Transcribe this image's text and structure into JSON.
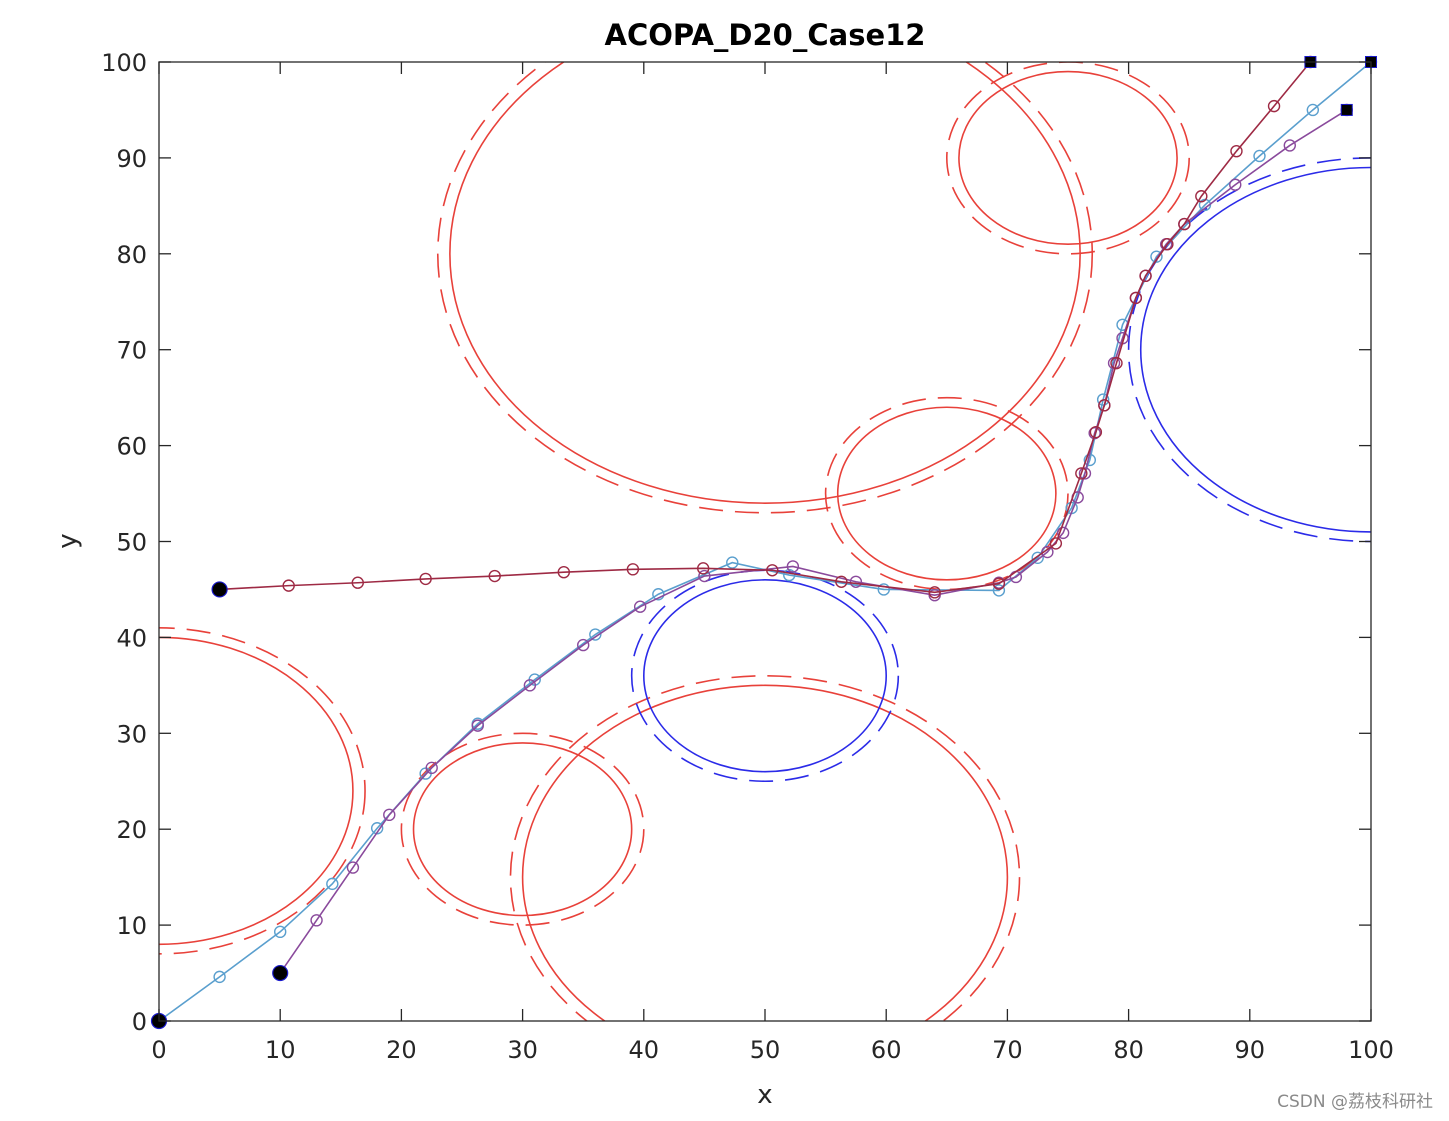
{
  "chart_data": {
    "type": "scatter",
    "title": "ACOPA_D20_Case12",
    "xlabel": "x",
    "ylabel": "y",
    "xlim": [
      0,
      100
    ],
    "ylim": [
      0,
      100
    ],
    "xticks": [
      0,
      10,
      20,
      30,
      40,
      50,
      60,
      70,
      80,
      90,
      100
    ],
    "yticks": [
      0,
      10,
      20,
      30,
      40,
      50,
      60,
      70,
      80,
      90,
      100
    ],
    "grid": false,
    "obstacles": [
      {
        "cx": 50,
        "cy": 80,
        "rx": 26,
        "ry": 26,
        "color": "#e8413a"
      },
      {
        "cx": 75,
        "cy": 90,
        "rx": 9,
        "ry": 9,
        "color": "#e8413a"
      },
      {
        "cx": 65,
        "cy": 55,
        "rx": 9,
        "ry": 9,
        "color": "#e8413a"
      },
      {
        "cx": 0,
        "cy": 24,
        "rx": 16,
        "ry": 16,
        "color": "#e8413a"
      },
      {
        "cx": 30,
        "cy": 20,
        "rx": 9,
        "ry": 9,
        "color": "#e8413a"
      },
      {
        "cx": 50,
        "cy": 15,
        "rx": 20,
        "ry": 20,
        "color": "#e8413a"
      },
      {
        "cx": 50,
        "cy": 36,
        "rx": 10,
        "ry": 10,
        "color": "#2b2be8"
      },
      {
        "cx": 100,
        "cy": 70,
        "rx": 19,
        "ry": 19,
        "color": "#2b2be8"
      }
    ],
    "series": [
      {
        "color": "#5a9fce",
        "x": [
          0,
          5,
          10,
          14.3,
          18,
          22,
          26.3,
          31,
          36,
          41.2,
          47.3,
          52,
          59.8,
          69.3,
          72.5,
          75.3,
          76.8,
          77.9,
          79.5,
          82.3,
          86.3,
          90.8,
          95.2,
          100
        ],
        "y": [
          0,
          4.6,
          9.3,
          14.3,
          20.1,
          25.8,
          31,
          35.6,
          40.3,
          44.5,
          47.8,
          46.5,
          45,
          44.9,
          48.3,
          53.5,
          58.5,
          64.8,
          72.6,
          79.7,
          85.1,
          90.2,
          95,
          100
        ]
      },
      {
        "color": "#8a4a9c",
        "x": [
          10,
          13,
          16,
          19,
          22.5,
          26.3,
          30.6,
          35,
          39.7,
          45,
          52.3,
          57.5,
          64,
          69.3,
          70.7,
          73.3,
          74.6,
          75.8,
          76.4,
          77.2,
          78,
          78.8,
          79.5,
          80.6,
          81.4,
          83.1,
          84.6,
          88.8,
          93.3,
          98
        ],
        "y": [
          5,
          10.5,
          16,
          21.5,
          26.4,
          30.8,
          35,
          39.2,
          43.2,
          46.4,
          47.4,
          45.8,
          44.4,
          45.7,
          46.3,
          48.9,
          50.9,
          54.6,
          57.1,
          61.3,
          64.2,
          68.6,
          71.2,
          75.4,
          77.7,
          81,
          83.1,
          87.2,
          91.3,
          95
        ]
      },
      {
        "color": "#9e2a44",
        "x": [
          5,
          10.7,
          16.4,
          22,
          27.7,
          33.4,
          39.1,
          44.9,
          50.6,
          56.3,
          64,
          69.3,
          74,
          76.1,
          77.3,
          78,
          79,
          80.6,
          81.4,
          83.2,
          84.6,
          86,
          88.9,
          92,
          95
        ],
        "y": [
          45,
          45.4,
          45.7,
          46.1,
          46.4,
          46.8,
          47.1,
          47.2,
          47,
          45.8,
          44.7,
          45.6,
          49.8,
          57.1,
          61.4,
          64.2,
          68.6,
          75.4,
          77.7,
          81,
          83.1,
          86,
          90.7,
          95.4,
          100
        ]
      }
    ],
    "start_points": [
      {
        "x": 0,
        "y": 0
      },
      {
        "x": 10,
        "y": 5
      },
      {
        "x": 5,
        "y": 45
      }
    ],
    "end_points": [
      {
        "x": 100,
        "y": 100
      },
      {
        "x": 98,
        "y": 95
      },
      {
        "x": 95,
        "y": 100
      }
    ]
  },
  "watermark": "CSDN @荔枝科研社"
}
